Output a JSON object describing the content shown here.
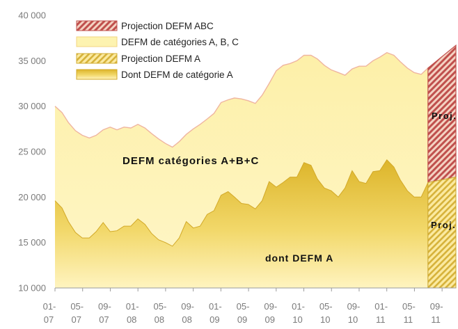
{
  "chart_data": {
    "type": "area",
    "x_labels": [
      [
        "01-",
        "07"
      ],
      [
        "05-",
        "07"
      ],
      [
        "09-",
        "07"
      ],
      [
        "01-",
        "08"
      ],
      [
        "05-",
        "08"
      ],
      [
        "09-",
        "08"
      ],
      [
        "01-",
        "09"
      ],
      [
        "05-",
        "09"
      ],
      [
        "09-",
        "09"
      ],
      [
        "01-",
        "10"
      ],
      [
        "05-",
        "10"
      ],
      [
        "09-",
        "10"
      ],
      [
        "01-",
        "11"
      ],
      [
        "05-",
        "11"
      ],
      [
        "09-",
        "11"
      ]
    ],
    "y_ticks": [
      "10 000",
      "15 000",
      "20 000",
      "25 000",
      "30 000",
      "35 000",
      "40 000"
    ],
    "ylim": [
      10000,
      40000
    ],
    "months": [
      "2007-01",
      "2007-02",
      "2007-03",
      "2007-04",
      "2007-05",
      "2007-06",
      "2007-07",
      "2007-08",
      "2007-09",
      "2007-10",
      "2007-11",
      "2007-12",
      "2008-01",
      "2008-02",
      "2008-03",
      "2008-04",
      "2008-05",
      "2008-06",
      "2008-07",
      "2008-08",
      "2008-09",
      "2008-10",
      "2008-11",
      "2008-12",
      "2009-01",
      "2009-02",
      "2009-03",
      "2009-04",
      "2009-05",
      "2009-06",
      "2009-07",
      "2009-08",
      "2009-09",
      "2009-10",
      "2009-11",
      "2009-12",
      "2010-01",
      "2010-02",
      "2010-03",
      "2010-04",
      "2010-05",
      "2010-06",
      "2010-07",
      "2010-08",
      "2010-09",
      "2010-10",
      "2010-11",
      "2010-12",
      "2011-01",
      "2011-02",
      "2011-03",
      "2011-04",
      "2011-05",
      "2011-06",
      "2011-07"
    ],
    "series": [
      {
        "name": "DEFM de catégories A, B, C",
        "values": [
          30000,
          29300,
          28200,
          27300,
          26800,
          26500,
          26800,
          27400,
          27700,
          27400,
          27700,
          27600,
          28000,
          27600,
          27000,
          26400,
          25900,
          25500,
          26100,
          26900,
          27500,
          28000,
          28600,
          29200,
          30400,
          30700,
          30900,
          30800,
          30600,
          30300,
          31200,
          32500,
          33900,
          34500,
          34700,
          35000,
          35600,
          35600,
          35200,
          34500,
          34000,
          33700,
          33400,
          34100,
          34400,
          34400,
          35000,
          35400,
          35900,
          35600,
          34900,
          34200,
          33700,
          33500,
          34200
        ]
      },
      {
        "name": "Dont DEFM de catégorie A",
        "values": [
          19600,
          18800,
          17300,
          16100,
          15500,
          15500,
          16200,
          17200,
          16200,
          16300,
          16800,
          16800,
          17600,
          17000,
          16000,
          15300,
          15000,
          14600,
          15500,
          17300,
          16600,
          16800,
          18100,
          18500,
          20200,
          20600,
          20000,
          19300,
          19200,
          18700,
          19600,
          21700,
          21100,
          21600,
          22200,
          22200,
          23800,
          23500,
          22000,
          21000,
          20700,
          20000,
          21000,
          22900,
          21700,
          21500,
          22800,
          22900,
          24100,
          23300,
          21900,
          20700,
          20000,
          20000,
          21600
        ]
      },
      {
        "name": "Projection DEFM ABC",
        "x": [
          "2011-07",
          "2011-11"
        ],
        "upper": [
          34200,
          36700
        ],
        "lower": [
          21600,
          22000
        ]
      },
      {
        "name": "Projection DEFM A",
        "x": [
          "2011-07",
          "2011-11"
        ],
        "upper": [
          21600,
          22200
        ]
      }
    ],
    "legend": [
      {
        "label": "Projection DEFM ABC",
        "color": "#c0504d",
        "pattern": "hatch-red"
      },
      {
        "label": "DEFM de catégories A, B, C",
        "color": "#fdf3b0",
        "pattern": "solid-light"
      },
      {
        "label": "Projection DEFM A",
        "color": "#e2c04a",
        "pattern": "hatch-yellow"
      },
      {
        "label": "Dont DEFM de catégorie A",
        "color": "#e6c23c",
        "pattern": "gradient-gold"
      }
    ],
    "legend_position": "top-left",
    "annotations": {
      "abc": "DEFM catégories A+B+C",
      "a": "dont DEFM  A",
      "proj_upper": "Proj.",
      "proj_lower": "Proj."
    },
    "colors": {
      "abc_fill": "#fdf3b0",
      "abc_line": "#f0b0a0",
      "a_fill_top": "#e2bb2e",
      "a_fill_bottom": "#fff3b8",
      "proj_red": "#c0504d",
      "proj_yellow": "#d4b13a"
    },
    "grid": false
  }
}
